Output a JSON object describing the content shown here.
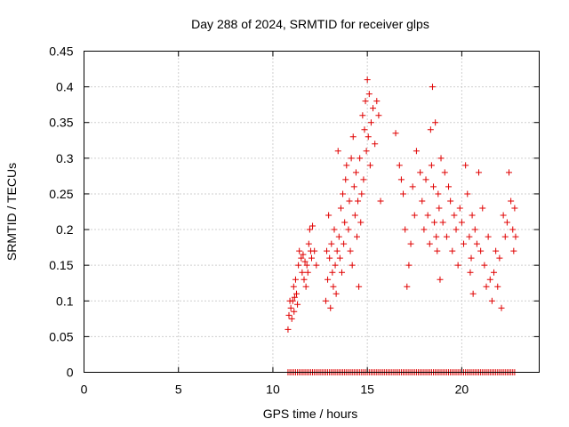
{
  "chart_data": {
    "type": "scatter",
    "title": "Day 288 of 2024, SRMTID for receiver glps",
    "xlabel": "GPS time / hours",
    "ylabel": "SRMTID / TECUs",
    "xlim": [
      0,
      24.1
    ],
    "ylim": [
      0,
      0.45
    ],
    "xticks": [
      0,
      5,
      10,
      15,
      20
    ],
    "xtick_labels": [
      "0",
      "5",
      "10",
      "15",
      "20"
    ],
    "yticks": [
      0,
      0.05,
      0.1,
      0.15,
      0.2,
      0.25,
      0.3,
      0.35,
      0.4,
      0.45
    ],
    "ytick_labels": [
      "0",
      "0.05",
      "0.1",
      "0.15",
      "0.2",
      "0.25",
      "0.3",
      "0.35",
      "0.4",
      "0.45"
    ],
    "grid": true,
    "marker": "plus",
    "series": [
      {
        "name": "SRMTID",
        "color": "#e00000",
        "x": [
          10.8,
          10.85,
          10.9,
          10.95,
          11.0,
          11.05,
          11.1,
          11.12,
          11.15,
          11.2,
          11.25,
          11.3,
          11.35,
          11.4,
          11.5,
          11.55,
          11.6,
          11.65,
          11.7,
          11.75,
          11.8,
          11.85,
          11.9,
          11.95,
          12.0,
          12.05,
          12.1,
          12.2,
          12.3,
          12.8,
          12.85,
          12.9,
          12.95,
          13.0,
          13.05,
          13.1,
          13.15,
          13.2,
          13.25,
          13.3,
          13.35,
          13.4,
          13.45,
          13.5,
          13.55,
          13.6,
          13.65,
          13.7,
          13.75,
          13.8,
          13.85,
          13.9,
          14.0,
          14.05,
          14.1,
          14.15,
          14.2,
          14.25,
          14.3,
          14.35,
          14.4,
          14.45,
          14.5,
          14.55,
          14.6,
          14.65,
          14.7,
          14.75,
          14.8,
          14.85,
          14.9,
          14.95,
          15.0,
          15.05,
          15.1,
          15.15,
          15.2,
          15.3,
          15.4,
          15.5,
          15.6,
          15.7,
          16.5,
          16.7,
          16.8,
          16.9,
          17.0,
          17.1,
          17.2,
          17.3,
          17.4,
          17.5,
          17.6,
          17.8,
          17.9,
          18.0,
          18.1,
          18.2,
          18.3,
          18.35,
          18.4,
          18.45,
          18.5,
          18.55,
          18.6,
          18.65,
          18.7,
          18.75,
          18.8,
          18.85,
          18.9,
          19.0,
          19.1,
          19.2,
          19.3,
          19.4,
          19.5,
          19.6,
          19.7,
          19.8,
          19.9,
          20.0,
          20.1,
          20.2,
          20.3,
          20.4,
          20.45,
          20.5,
          20.55,
          20.6,
          20.7,
          20.8,
          20.9,
          21.0,
          21.1,
          21.2,
          21.3,
          21.4,
          21.5,
          21.6,
          21.7,
          21.8,
          21.9,
          22.0,
          22.1,
          22.2,
          22.3,
          22.4,
          22.5,
          22.6,
          22.7,
          22.75,
          22.8,
          22.85
        ],
        "y": [
          0.06,
          0.08,
          0.1,
          0.09,
          0.075,
          0.1,
          0.12,
          0.085,
          0.105,
          0.13,
          0.11,
          0.095,
          0.15,
          0.17,
          0.16,
          0.14,
          0.165,
          0.13,
          0.155,
          0.12,
          0.15,
          0.14,
          0.18,
          0.2,
          0.17,
          0.16,
          0.205,
          0.17,
          0.15,
          0.1,
          0.17,
          0.13,
          0.22,
          0.16,
          0.09,
          0.18,
          0.14,
          0.12,
          0.2,
          0.15,
          0.11,
          0.17,
          0.31,
          0.19,
          0.16,
          0.23,
          0.14,
          0.25,
          0.18,
          0.21,
          0.27,
          0.29,
          0.2,
          0.24,
          0.17,
          0.3,
          0.15,
          0.33,
          0.26,
          0.22,
          0.28,
          0.19,
          0.24,
          0.12,
          0.3,
          0.21,
          0.25,
          0.36,
          0.27,
          0.34,
          0.38,
          0.31,
          0.41,
          0.33,
          0.39,
          0.29,
          0.35,
          0.37,
          0.32,
          0.38,
          0.36,
          0.24,
          0.335,
          0.29,
          0.27,
          0.25,
          0.2,
          0.12,
          0.15,
          0.18,
          0.26,
          0.22,
          0.31,
          0.28,
          0.24,
          0.2,
          0.27,
          0.22,
          0.18,
          0.34,
          0.29,
          0.4,
          0.26,
          0.21,
          0.35,
          0.19,
          0.17,
          0.25,
          0.23,
          0.13,
          0.3,
          0.21,
          0.28,
          0.19,
          0.26,
          0.24,
          0.17,
          0.22,
          0.2,
          0.15,
          0.23,
          0.21,
          0.18,
          0.29,
          0.25,
          0.19,
          0.14,
          0.16,
          0.22,
          0.11,
          0.2,
          0.18,
          0.28,
          0.17,
          0.23,
          0.15,
          0.12,
          0.19,
          0.13,
          0.1,
          0.14,
          0.17,
          0.12,
          0.16,
          0.09,
          0.22,
          0.19,
          0.21,
          0.28,
          0.24,
          0.2,
          0.17,
          0.23,
          0.19
        ],
        "zero_x": [
          10.8,
          10.9,
          11.0,
          11.1,
          11.2,
          11.3,
          11.4,
          11.5,
          11.6,
          11.7,
          11.8,
          11.9,
          12.0,
          12.1,
          12.2,
          12.3,
          12.4,
          12.5,
          12.6,
          12.7,
          12.8,
          12.9,
          13.0,
          13.1,
          13.2,
          13.3,
          13.4,
          13.5,
          13.6,
          13.7,
          13.8,
          13.9,
          14.0,
          14.1,
          14.2,
          14.3,
          14.4,
          14.5,
          14.6,
          14.7,
          14.8,
          14.9,
          15.0,
          15.1,
          15.2,
          15.3,
          15.4,
          15.5,
          15.6,
          15.7,
          15.8,
          15.9,
          16.0,
          16.1,
          16.2,
          16.3,
          16.4,
          16.5,
          16.6,
          16.7,
          16.8,
          16.9,
          17.0,
          17.1,
          17.2,
          17.3,
          17.4,
          17.5,
          17.6,
          17.7,
          17.8,
          17.9,
          18.0,
          18.1,
          18.2,
          18.3,
          18.4,
          18.5,
          18.6,
          18.7,
          18.8,
          18.9,
          19.0,
          19.1,
          19.2,
          19.3,
          19.4,
          19.5,
          19.6,
          19.7,
          19.8,
          19.9,
          20.0,
          20.1,
          20.2,
          20.3,
          20.4,
          20.5,
          20.6,
          20.7,
          20.8,
          20.9,
          21.0,
          21.1,
          21.2,
          21.3,
          21.4,
          21.5,
          21.6,
          21.7,
          21.8,
          21.9,
          22.0,
          22.1,
          22.2,
          22.3,
          22.4,
          22.5,
          22.6,
          22.7,
          22.8
        ]
      }
    ]
  }
}
